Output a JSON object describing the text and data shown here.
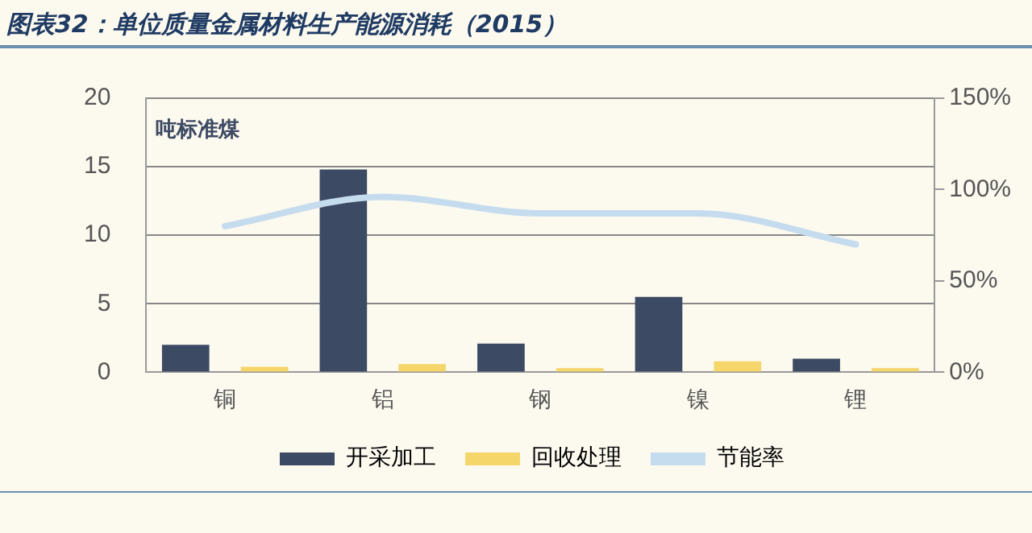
{
  "chart_data": {
    "type": "bar",
    "title": "图表32：单位质量金属材料生产能源消耗（2015）",
    "ylabel": "吨标准煤",
    "categories": [
      "铜",
      "铝",
      "钢",
      "镍",
      "锂"
    ],
    "series": [
      {
        "name": "开采加工",
        "color": "#3d4a63",
        "values": [
          2.0,
          14.8,
          2.1,
          5.5,
          1.0
        ]
      },
      {
        "name": "回收处理",
        "color": "#f5d66a",
        "values": [
          0.4,
          0.6,
          0.3,
          0.8,
          0.3
        ]
      },
      {
        "name": "节能率",
        "type": "line",
        "axis": "y2",
        "color": "#c5dcef",
        "values": [
          80,
          96,
          87,
          87,
          70
        ]
      }
    ],
    "ylim": [
      0,
      20
    ],
    "yticks": [
      0,
      5,
      10,
      15,
      20
    ],
    "y2lim": [
      0,
      150
    ],
    "y2ticks": [
      {
        "value": 0,
        "label": "0%"
      },
      {
        "value": 50,
        "label": "50%"
      },
      {
        "value": 100,
        "label": "100%"
      },
      {
        "value": 150,
        "label": "150%"
      }
    ],
    "grid": "y",
    "legend": "bottom",
    "marker": "none",
    "line_style": "solid"
  }
}
